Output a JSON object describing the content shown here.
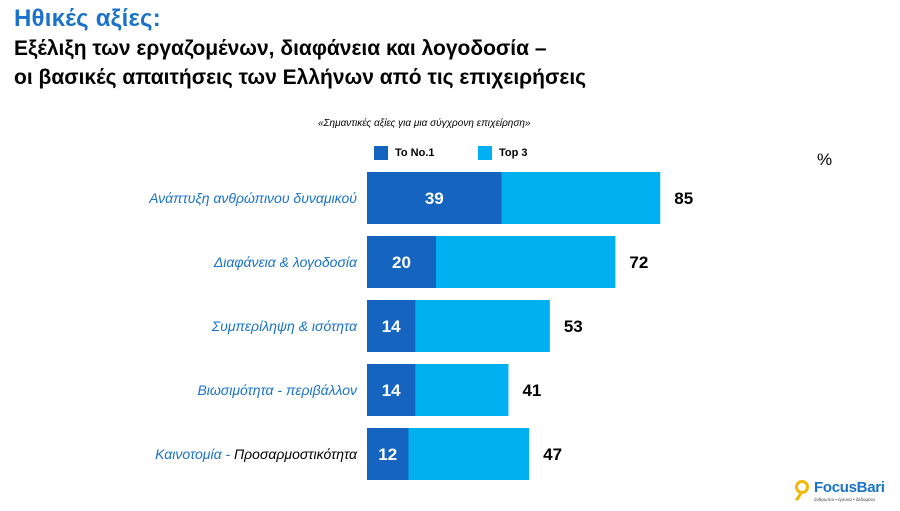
{
  "header": {
    "title": "Ηθικές αξίες:",
    "subtitle_line1": "Εξέλιξη των εργαζομένων, διαφάνεια και λογοδοσία –",
    "subtitle_line2": "οι βασικές απαιτήσεις των Ελλήνων από τις επιχειρήσεις"
  },
  "chart_caption": "«Σημαντικές αξίες για μια σύγχρονη επιχείρηση»",
  "unit_label": "%",
  "colors": {
    "no1": "#1565c0",
    "top3": "#00b0f0",
    "category_text": "#1a73c9"
  },
  "chart_data": {
    "type": "bar",
    "orientation": "horizontal",
    "categories": [
      "Ανάπτυξη ανθρώπινου δυναμικού",
      "Διαφάνεια & λογοδοσία",
      "Συμπερίληψη & ισότητα",
      "Βιωσιμότητα - περιβάλλον",
      "Καινοτομία - Προσαρμοστικότητα"
    ],
    "series": [
      {
        "name": "To No.1",
        "values": [
          39,
          20,
          14,
          14,
          12
        ]
      },
      {
        "name": "Top 3",
        "values": [
          85,
          72,
          53,
          41,
          47
        ]
      }
    ],
    "legend_position": "top",
    "grid": false,
    "xlim": [
      0,
      100
    ]
  },
  "logo": {
    "name": "FocusBari",
    "tagline": "άνθρωποι • έρευνα • δεδομένα"
  }
}
